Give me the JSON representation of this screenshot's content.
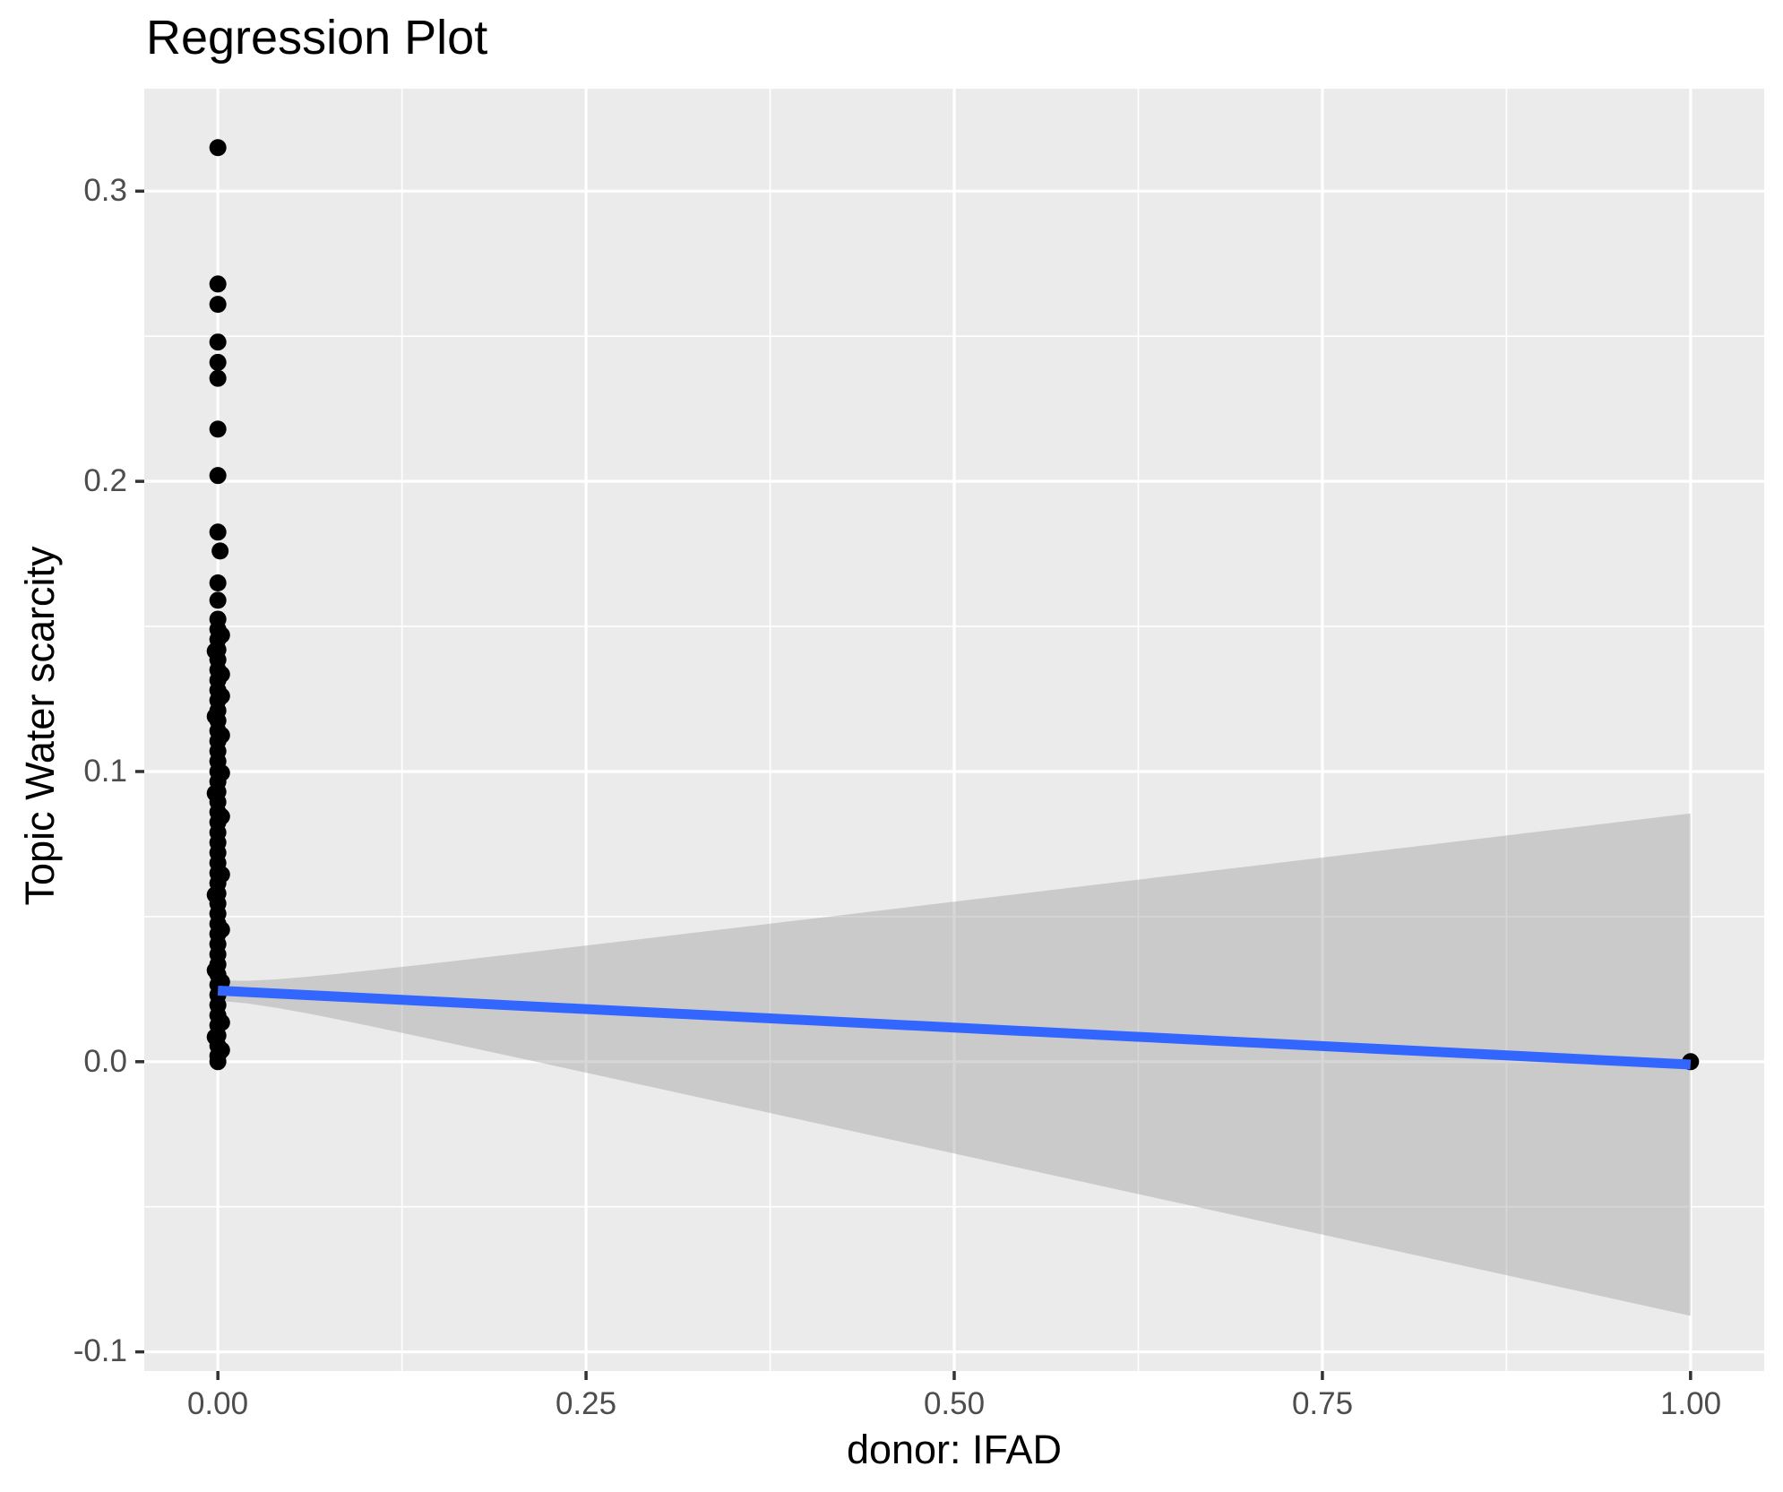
{
  "title": "Regression Plot",
  "chart_data": {
    "type": "scatter",
    "title": "Regression Plot",
    "xlabel": "donor: IFAD",
    "ylabel": "Topic Water scarcity",
    "xlim": [
      -0.05,
      1.05
    ],
    "ylim": [
      -0.1066,
      0.3353
    ],
    "grid": "on",
    "legend": "none",
    "x_ticks": [
      {
        "v": 0.0,
        "label": "0.00"
      },
      {
        "v": 0.25,
        "label": "0.25"
      },
      {
        "v": 0.5,
        "label": "0.50"
      },
      {
        "v": 0.75,
        "label": "0.75"
      },
      {
        "v": 1.0,
        "label": "1.00"
      }
    ],
    "y_ticks": [
      {
        "v": 0.3,
        "label": "0.3"
      },
      {
        "v": 0.2,
        "label": "0.2"
      },
      {
        "v": 0.1,
        "label": "0.1"
      },
      {
        "v": 0.0,
        "label": "0.0"
      },
      {
        "v": -0.1,
        "label": "-0.1"
      }
    ],
    "x_minor": [
      0.125,
      0.375,
      0.625,
      0.875
    ],
    "y_minor": [
      0.25,
      0.15,
      0.05,
      -0.05
    ],
    "regression_line": {
      "x": [
        0,
        1
      ],
      "y": [
        0.0245,
        -0.001
      ]
    },
    "ci_band": {
      "halfwidth_x0": 0.0035,
      "halfwidth_x1": 0.0865
    },
    "point_radius_px": 9.5,
    "colors": {
      "panel_bg": "#EBEBEB",
      "grid": "#FFFFFF",
      "point": "#000000",
      "line": "#3366FF",
      "band": "#999999",
      "band_alpha": 0.4,
      "tick_text": "#4D4D4D",
      "tick_mark": "#333333",
      "title_text": "#000000"
    },
    "points": [
      [
        0,
        0.315
      ],
      [
        0,
        0.268
      ],
      [
        0,
        0.261
      ],
      [
        0,
        0.248
      ],
      [
        0,
        0.241
      ],
      [
        0,
        0.2355
      ],
      [
        0,
        0.218
      ],
      [
        0,
        0.202
      ],
      [
        0,
        0.1825
      ],
      [
        0.0015,
        0.176
      ],
      [
        0,
        0.165
      ],
      [
        0,
        0.159
      ],
      [
        0,
        0.1525
      ],
      [
        0,
        0.149
      ],
      [
        0,
        0.1455
      ],
      [
        0,
        0.142
      ],
      [
        0,
        0.1385
      ],
      [
        0,
        0.135
      ],
      [
        0,
        0.1315
      ],
      [
        0,
        0.128
      ],
      [
        0,
        0.1245
      ],
      [
        0,
        0.121
      ],
      [
        0,
        0.1175
      ],
      [
        0,
        0.114
      ],
      [
        0,
        0.1105
      ],
      [
        0,
        0.107
      ],
      [
        0,
        0.1035
      ],
      [
        0,
        0.1
      ],
      [
        0,
        0.0965
      ],
      [
        0,
        0.093
      ],
      [
        0,
        0.0895
      ],
      [
        0,
        0.086
      ],
      [
        0,
        0.0825
      ],
      [
        0,
        0.079
      ],
      [
        0,
        0.0755
      ],
      [
        0,
        0.072
      ],
      [
        0,
        0.0685
      ],
      [
        0,
        0.065
      ],
      [
        0,
        0.0615
      ],
      [
        0,
        0.058
      ],
      [
        0,
        0.0545
      ],
      [
        0,
        0.051
      ],
      [
        0,
        0.0475
      ],
      [
        0,
        0.044
      ],
      [
        0,
        0.0405
      ],
      [
        0,
        0.037
      ],
      [
        0,
        0.0335
      ],
      [
        0,
        0.03
      ],
      [
        0,
        0.0265
      ],
      [
        0,
        0.023
      ],
      [
        0,
        0.0195
      ],
      [
        0,
        0.016
      ],
      [
        0,
        0.0125
      ],
      [
        0,
        0.009
      ],
      [
        0,
        0.0055
      ],
      [
        0,
        0.002
      ],
      [
        0,
        0.0
      ],
      [
        0.0025,
        0.147
      ],
      [
        0.0025,
        0.1335
      ],
      [
        0.0025,
        0.126
      ],
      [
        0.0025,
        0.1125
      ],
      [
        0.0025,
        0.0995
      ],
      [
        0.0025,
        0.0845
      ],
      [
        0.0025,
        0.0645
      ],
      [
        0.0025,
        0.0455
      ],
      [
        0.0025,
        0.0275
      ],
      [
        0.0025,
        0.0135
      ],
      [
        0.0025,
        0.004
      ],
      [
        -0.0018,
        0.1415
      ],
      [
        -0.0018,
        0.119
      ],
      [
        -0.0018,
        0.0925
      ],
      [
        -0.0018,
        0.0575
      ],
      [
        -0.0018,
        0.0315
      ],
      [
        -0.0018,
        0.0085
      ],
      [
        1,
        0.0
      ]
    ]
  }
}
